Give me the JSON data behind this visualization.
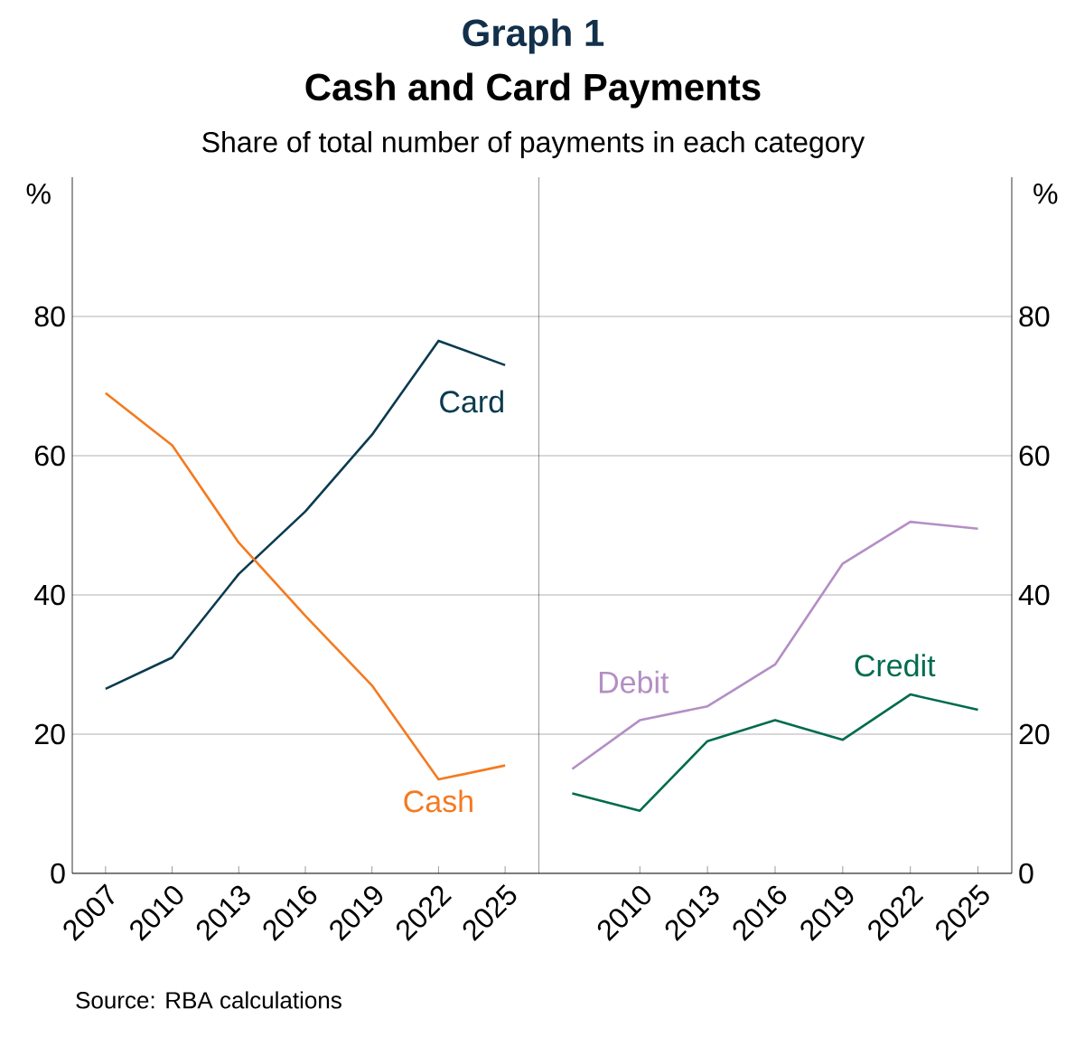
{
  "chart_data": [
    {
      "type": "line",
      "title": "Cash and Card Payments",
      "subtitle": "Share of total number of payments in each category",
      "ylabel": "%",
      "annotations": [
        "Graph 1",
        "Source:  RBA calculations"
      ],
      "x": [
        2007,
        2010,
        2013,
        2016,
        2019,
        2022,
        2025
      ],
      "series": [
        {
          "name": "Card",
          "color": "#0b3b4f",
          "values": [
            26.5,
            31,
            43,
            52,
            63,
            76.5,
            73
          ]
        },
        {
          "name": "Cash",
          "color": "#f47a20",
          "values": [
            69,
            61.5,
            47.5,
            37,
            27,
            13.5,
            15.5
          ]
        }
      ],
      "xlim": [
        2005.5,
        2026.5
      ],
      "xticks": [
        2007,
        2010,
        2013,
        2016,
        2019,
        2022,
        2025
      ],
      "ylim": [
        0,
        100
      ],
      "yticks": [
        0,
        20,
        40,
        60,
        80
      ],
      "grid": "y"
    },
    {
      "type": "line",
      "ylabel": "%",
      "x": [
        2007,
        2010,
        2013,
        2016,
        2019,
        2022,
        2025
      ],
      "series": [
        {
          "name": "Debit",
          "color": "#b48ec4",
          "values": [
            15,
            22,
            24,
            30,
            44.5,
            50.5,
            49.5
          ]
        },
        {
          "name": "Credit",
          "color": "#006b4e",
          "values": [
            11.5,
            9,
            19,
            22,
            19.2,
            25.7,
            23.5
          ]
        }
      ],
      "xlim": [
        2005.5,
        2026.5
      ],
      "xticks": [
        2010,
        2013,
        2016,
        2019,
        2022,
        2025
      ],
      "ylim": [
        0,
        100
      ],
      "yticks": [
        0,
        20,
        40,
        60,
        80
      ],
      "grid": "y"
    }
  ]
}
